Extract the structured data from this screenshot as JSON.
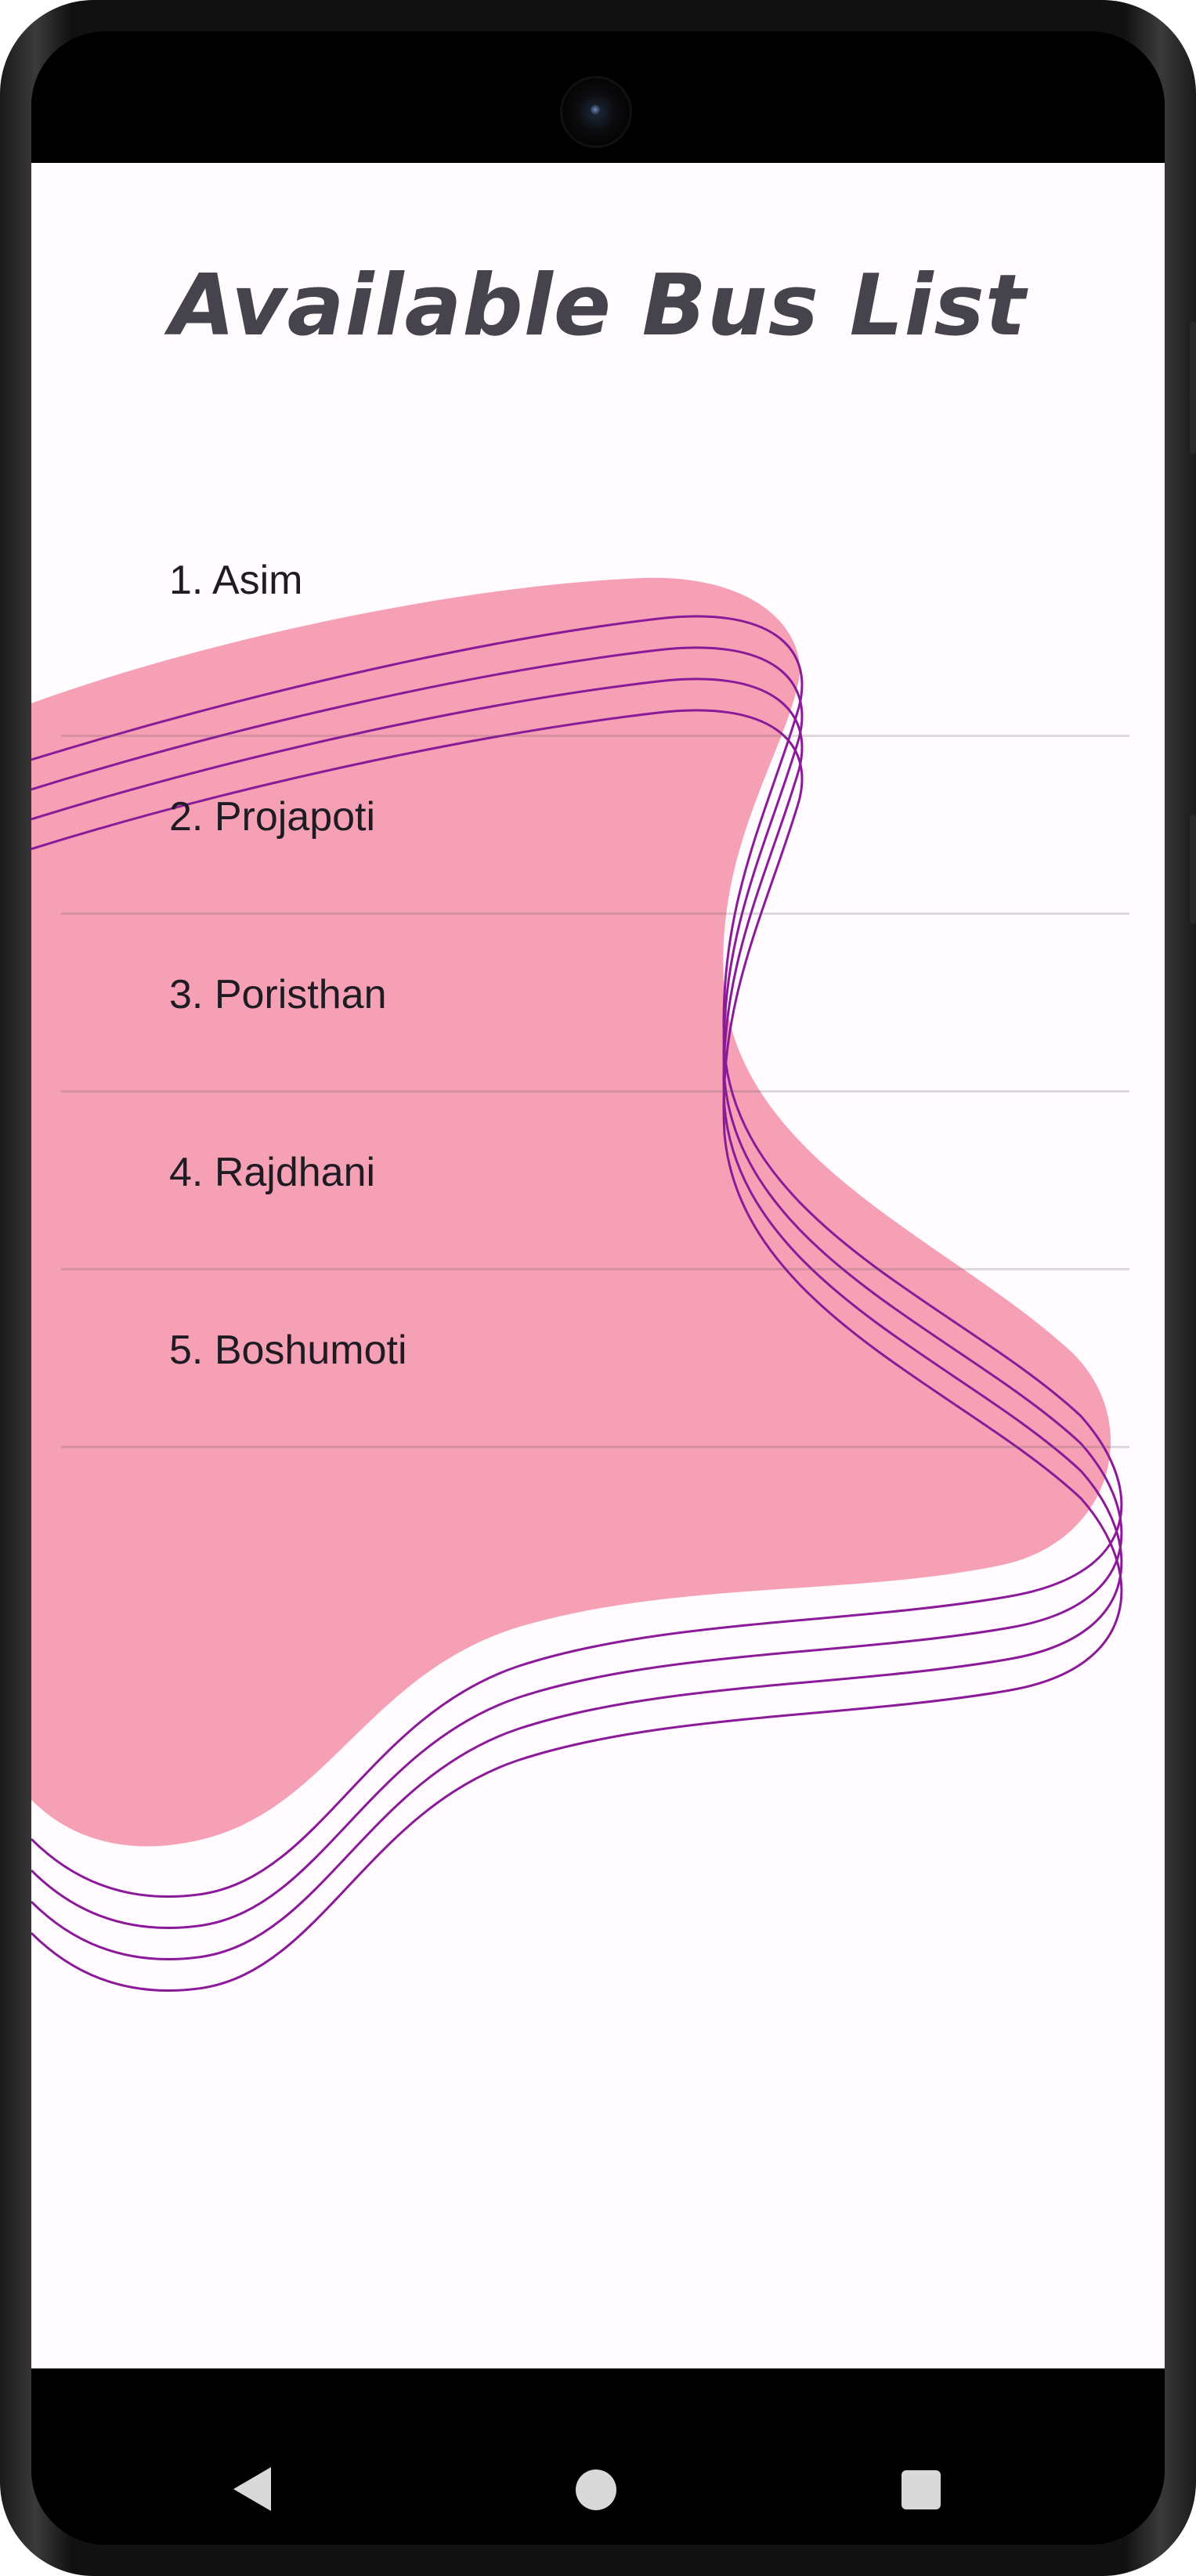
{
  "screen": {
    "title": "Available Bus List"
  },
  "bus_list": {
    "items": [
      {
        "label": "1. Asim"
      },
      {
        "label": "2. Projapoti"
      },
      {
        "label": "3. Poristhan"
      },
      {
        "label": "4. Rajdhani"
      },
      {
        "label": "5. Boshumoti"
      }
    ]
  },
  "colors": {
    "background": "#fffbfe",
    "blob": "#f5a0b5",
    "wave_lines": "#8b1a99",
    "title_text": "#45434b",
    "item_text": "#1f1b22"
  },
  "navigation": {
    "back_icon": "back-triangle-icon",
    "home_icon": "home-circle-icon",
    "recents_icon": "recents-square-icon"
  }
}
